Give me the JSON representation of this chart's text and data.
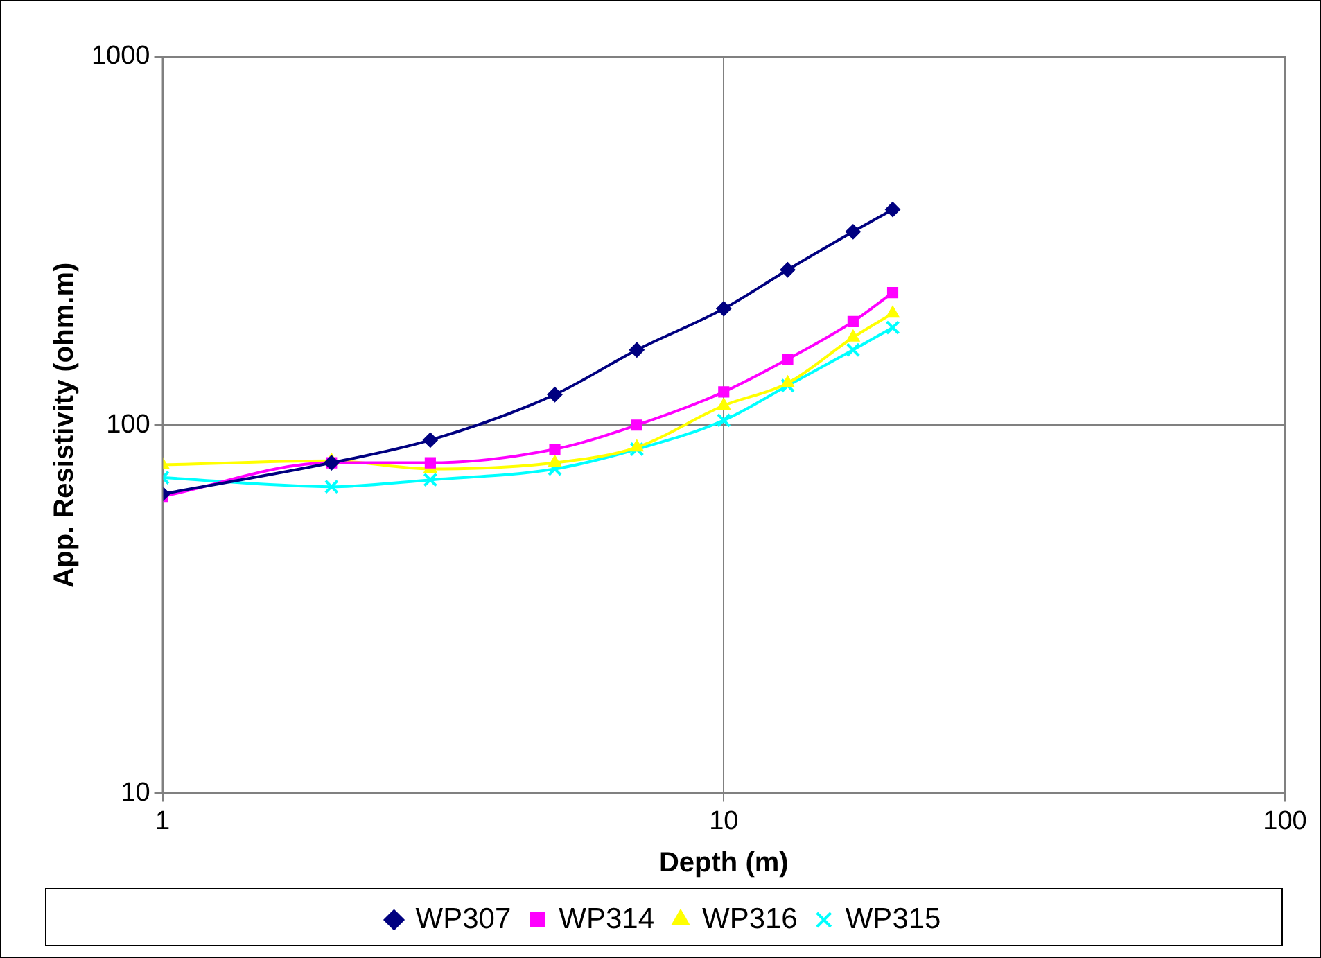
{
  "chart_data": {
    "type": "line",
    "xlabel": "Depth (m)",
    "ylabel": "App. Resistivity (ohm.m)",
    "log": "xy",
    "grid": true,
    "legend": "bottom",
    "line_style": "solid",
    "x": [
      1,
      2,
      3,
      5,
      7,
      10,
      13,
      17,
      20
    ],
    "xlim": [
      1,
      100
    ],
    "xticks": [
      1,
      10,
      100
    ],
    "ylim": [
      10,
      1000
    ],
    "yticks": [
      10,
      100,
      1000
    ],
    "series": [
      {
        "name": "WP307",
        "color": "#000080",
        "marker": "diamond",
        "values": [
          65,
          79,
          91,
          121,
          160,
          207,
          264,
          335,
          385
        ]
      },
      {
        "name": "WP314",
        "color": "#ff00ff",
        "marker": "square",
        "values": [
          64,
          79,
          79,
          86,
          100,
          123,
          151,
          191,
          229
        ]
      },
      {
        "name": "WP316",
        "color": "#ffff00",
        "marker": "triangle",
        "values": [
          78,
          80,
          76,
          79,
          87,
          113,
          130,
          173,
          201
        ]
      },
      {
        "name": "WP315",
        "color": "#00ffff",
        "marker": "cross",
        "values": [
          72,
          68,
          71,
          76,
          86,
          103,
          128,
          160,
          184
        ]
      }
    ]
  }
}
